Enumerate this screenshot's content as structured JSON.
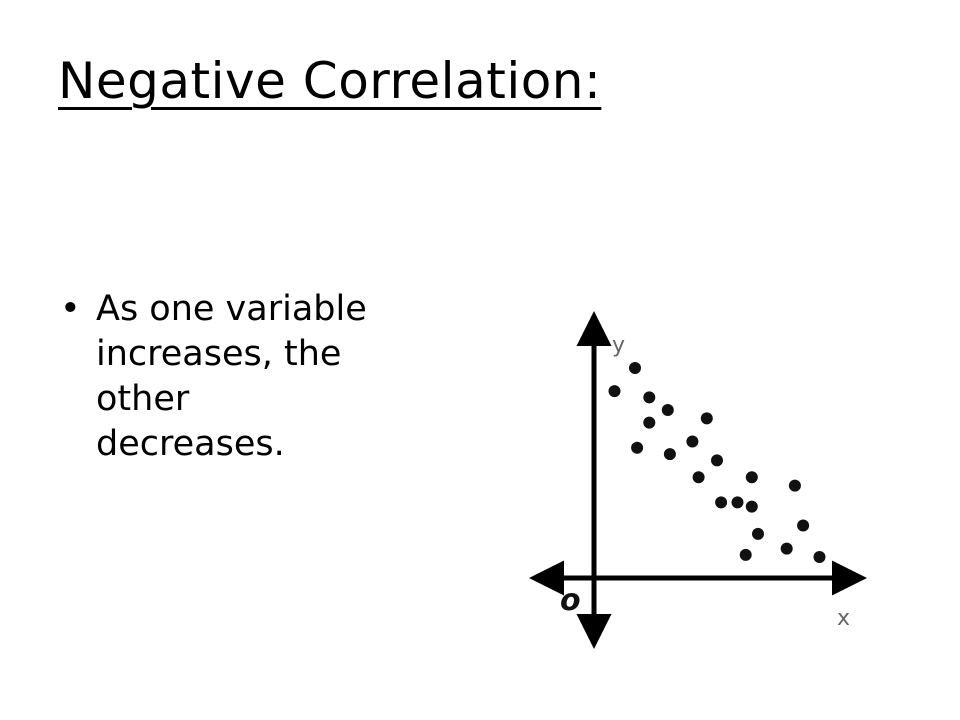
{
  "slide": {
    "title": "Negative Correlation:",
    "bullets": [
      {
        "marker": "•",
        "lines": [
          "As one variable",
          "increases, the",
          "other",
          "decreases."
        ]
      }
    ]
  },
  "chart_data": {
    "type": "scatter",
    "xlabel": "x",
    "ylabel": "y",
    "origin_label": "o",
    "grid": false,
    "xlim": [
      0,
      12
    ],
    "ylim": [
      0,
      10
    ],
    "points": [
      {
        "x": 1.0,
        "y": 8.9
      },
      {
        "x": 2.0,
        "y": 10.0
      },
      {
        "x": 2.7,
        "y": 8.6
      },
      {
        "x": 3.6,
        "y": 8.0
      },
      {
        "x": 2.7,
        "y": 7.4
      },
      {
        "x": 5.5,
        "y": 7.6
      },
      {
        "x": 2.1,
        "y": 6.2
      },
      {
        "x": 3.7,
        "y": 5.9
      },
      {
        "x": 4.8,
        "y": 6.5
      },
      {
        "x": 6.0,
        "y": 5.6
      },
      {
        "x": 5.1,
        "y": 4.8
      },
      {
        "x": 7.7,
        "y": 4.8
      },
      {
        "x": 9.8,
        "y": 4.4
      },
      {
        "x": 6.2,
        "y": 3.6
      },
      {
        "x": 7.0,
        "y": 3.6
      },
      {
        "x": 7.7,
        "y": 3.4
      },
      {
        "x": 10.2,
        "y": 2.5
      },
      {
        "x": 8.0,
        "y": 2.1
      },
      {
        "x": 7.4,
        "y": 1.1
      },
      {
        "x": 9.4,
        "y": 1.4
      },
      {
        "x": 11.0,
        "y": 1.0
      }
    ],
    "colors": {
      "point": "#111111",
      "axis": "#000000"
    }
  }
}
